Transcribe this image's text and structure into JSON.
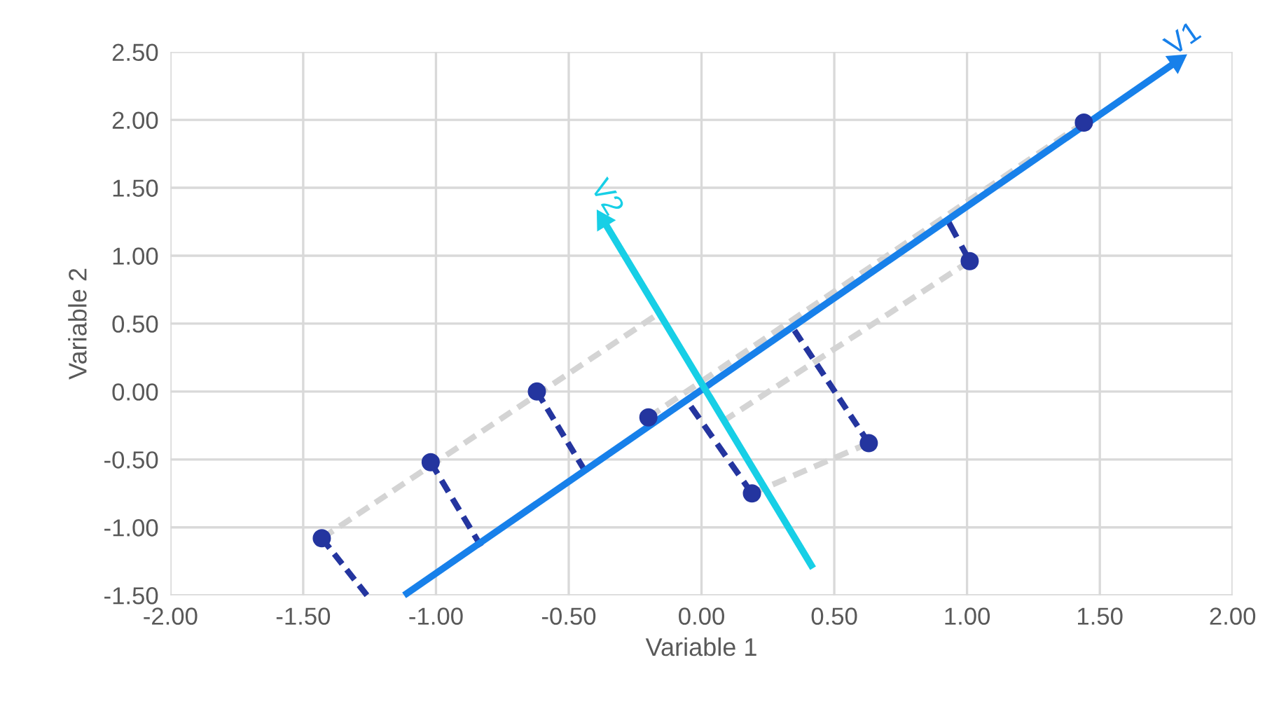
{
  "chart_data": {
    "type": "scatter",
    "xlabel": "Variable 1",
    "ylabel": "Variable 2",
    "xlim": [
      -2,
      2
    ],
    "ylim": [
      -1.5,
      2.5
    ],
    "xticks": [
      {
        "value": -2,
        "label": "-2.00"
      },
      {
        "value": -1.5,
        "label": "-1.50"
      },
      {
        "value": -1,
        "label": "-1.00"
      },
      {
        "value": -0.5,
        "label": "-0.50"
      },
      {
        "value": 0,
        "label": "0.00"
      },
      {
        "value": 0.5,
        "label": "0.50"
      },
      {
        "value": 1,
        "label": "1.00"
      },
      {
        "value": 1.5,
        "label": "1.50"
      },
      {
        "value": 2,
        "label": "2.00"
      }
    ],
    "yticks": [
      {
        "value": -1.5,
        "label": "-1.50"
      },
      {
        "value": -1,
        "label": "-1.00"
      },
      {
        "value": -0.5,
        "label": "-0.50"
      },
      {
        "value": 0,
        "label": "0.00"
      },
      {
        "value": 0.5,
        "label": "0.50"
      },
      {
        "value": 1,
        "label": "1.00"
      },
      {
        "value": 1.5,
        "label": "1.50"
      },
      {
        "value": 2,
        "label": "2.00"
      },
      {
        "value": 2.5,
        "label": "2.50"
      }
    ],
    "grid": true,
    "series": [
      {
        "type": "line",
        "color": "#d4d4d4",
        "line_style": "dashed",
        "x": [
          -1.43,
          -0.18
        ],
        "values": [
          -1.08,
          0.55
        ]
      },
      {
        "type": "line",
        "color": "#d4d4d4",
        "line_style": "dashed",
        "x": [
          -0.2,
          1.44
        ],
        "values": [
          -0.19,
          1.98
        ]
      },
      {
        "type": "line",
        "color": "#d4d4d4",
        "line_style": "dashed",
        "x": [
          0.19,
          0.63
        ],
        "values": [
          -0.75,
          -0.38
        ]
      },
      {
        "type": "line",
        "color": "#d4d4d4",
        "line_style": "dashed",
        "x": [
          0.08,
          1.01
        ],
        "values": [
          -0.22,
          0.96
        ]
      },
      {
        "type": "line",
        "color": "#24359f",
        "line_style": "dashed",
        "x": [
          -1.43,
          -1.26
        ],
        "values": [
          -1.08,
          -1.5
        ]
      },
      {
        "type": "line",
        "color": "#24359f",
        "line_style": "dashed",
        "x": [
          -1.02,
          -0.83
        ],
        "values": [
          -0.52,
          -1.14
        ]
      },
      {
        "type": "line",
        "color": "#24359f",
        "line_style": "dashed",
        "x": [
          -0.62,
          -0.44
        ],
        "values": [
          0.0,
          -0.58
        ]
      },
      {
        "type": "line",
        "color": "#24359f",
        "line_style": "dashed",
        "x": [
          0.19,
          -0.04
        ],
        "values": [
          -0.75,
          -0.11
        ]
      },
      {
        "type": "line",
        "color": "#24359f",
        "line_style": "dashed",
        "x": [
          0.63,
          0.35
        ],
        "values": [
          -0.38,
          0.45
        ]
      },
      {
        "type": "line",
        "color": "#24359f",
        "line_style": "dashed",
        "x": [
          1.01,
          0.93
        ],
        "values": [
          0.96,
          1.25
        ]
      },
      {
        "type": "line",
        "name": "V1",
        "color": "#1780ea",
        "line_style": "solid",
        "x": [
          -1.12,
          1.79
        ],
        "values": [
          -1.5,
          2.43
        ]
      },
      {
        "type": "line",
        "name": "V2",
        "color": "#17cfe6",
        "line_style": "solid",
        "x": [
          0.42,
          -0.37
        ],
        "values": [
          -1.3,
          1.26
        ]
      },
      {
        "color": "#24359f",
        "marker": "circle",
        "x": [
          -1.43,
          -1.02,
          -0.62,
          -0.2,
          0.19,
          0.63,
          1.01,
          1.44
        ],
        "values": [
          -1.08,
          -0.52,
          0.0,
          -0.19,
          -0.75,
          -0.38,
          0.96,
          1.98
        ]
      }
    ]
  }
}
